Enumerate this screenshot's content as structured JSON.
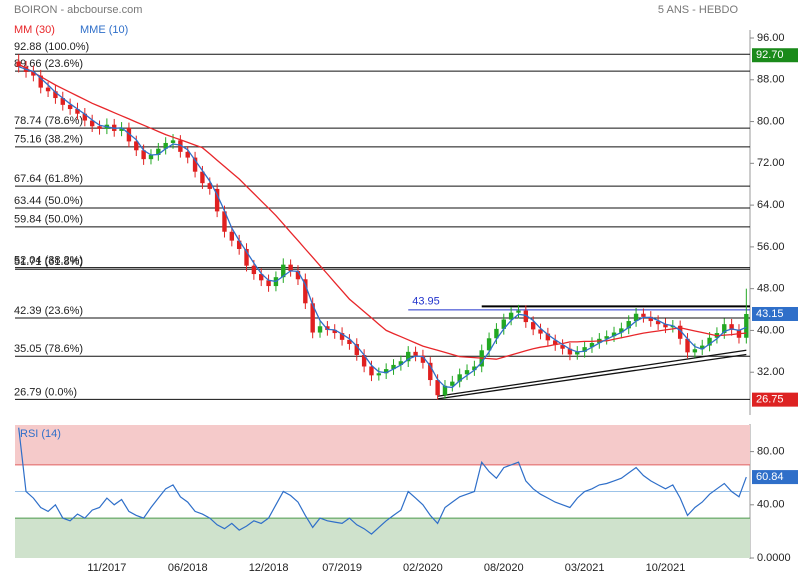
{
  "chart_data": [
    {
      "type": "candlestick",
      "title": "BOIRON - abcbourse.com",
      "subtitle": "5 ANS - HEBDO",
      "categories": [
        null,
        null,
        null,
        null,
        null,
        null,
        null,
        null,
        null,
        null,
        null,
        null,
        "11/2017",
        null,
        null,
        null,
        null,
        null,
        null,
        null,
        null,
        null,
        null,
        "06/2018",
        null,
        null,
        null,
        null,
        null,
        null,
        null,
        null,
        null,
        null,
        "12/2018",
        null,
        null,
        null,
        null,
        null,
        null,
        null,
        null,
        null,
        "07/2019",
        null,
        null,
        null,
        null,
        null,
        null,
        null,
        null,
        null,
        null,
        "02/2020",
        null,
        null,
        null,
        null,
        null,
        null,
        null,
        null,
        null,
        null,
        "08/2020",
        null,
        null,
        null,
        null,
        null,
        null,
        null,
        null,
        null,
        null,
        "03/2021",
        null,
        null,
        null,
        null,
        null,
        null,
        null,
        null,
        null,
        null,
        "10/2021",
        null,
        null,
        null,
        null,
        null,
        null,
        null,
        null,
        null,
        null,
        null
      ],
      "open": [
        91.5,
        90.5,
        89.5,
        88.8,
        86.5,
        85.8,
        84.5,
        83.2,
        82.4,
        81.5,
        80.2,
        79.1,
        78.6,
        79.4,
        78.2,
        78.8,
        76.2,
        74.5,
        72.8,
        73.6,
        74.8,
        75.9,
        76.4,
        74.2,
        73.1,
        70.4,
        68.2,
        67.1,
        62.8,
        58.9,
        57.2,
        55.6,
        52.4,
        50.8,
        49.6,
        48.5,
        50.2,
        52.6,
        51.4,
        49.8,
        45.2,
        39.6,
        40.8,
        40.1,
        39.5,
        38.2,
        37.4,
        35.3,
        33.1,
        31.4,
        31.8,
        32.6,
        33.4,
        34.1,
        35.9,
        35.2,
        33.8,
        30.5,
        27.6,
        29.4,
        30.2,
        31.6,
        32.4,
        33.1,
        36.2,
        38.5,
        40.3,
        42.1,
        43.4,
        43.8,
        41.6,
        40.2,
        39.4,
        38.1,
        37.2,
        36.5,
        35.4,
        35.9,
        36.8,
        37.6,
        38.4,
        38.9,
        39.6,
        40.4,
        41.8,
        43.2,
        42.6,
        41.8,
        41.2,
        40.6,
        40.9,
        38.4,
        35.8,
        36.4,
        37.1,
        38.6,
        39.5,
        41.2,
        40.1,
        38.6
      ],
      "high": [
        92.88,
        91.6,
        90.7,
        89.9,
        87.6,
        86.9,
        85.7,
        84.4,
        83.6,
        82.6,
        81.3,
        80.2,
        80.6,
        80.5,
        79.9,
        79.8,
        77.3,
        75.6,
        74.7,
        75.9,
        77.0,
        77.6,
        77.4,
        75.3,
        74.2,
        71.5,
        69.3,
        68.1,
        63.9,
        60.0,
        58.3,
        56.7,
        53.5,
        51.9,
        50.7,
        51.3,
        53.8,
        53.6,
        52.5,
        50.9,
        46.3,
        41.9,
        41.8,
        41.2,
        40.6,
        39.3,
        38.5,
        36.4,
        34.2,
        32.9,
        33.7,
        34.5,
        35.2,
        37.0,
        36.9,
        36.3,
        34.9,
        31.6,
        30.5,
        31.3,
        32.7,
        33.5,
        34.2,
        37.3,
        39.6,
        41.4,
        43.2,
        44.5,
        44.9,
        44.8,
        42.7,
        41.3,
        40.5,
        39.2,
        38.3,
        37.6,
        37.0,
        37.9,
        38.7,
        39.5,
        40.0,
        40.7,
        41.5,
        42.9,
        44.3,
        44.2,
        43.7,
        42.9,
        42.3,
        42.0,
        41.9,
        39.5,
        37.5,
        38.2,
        39.7,
        40.6,
        42.3,
        42.2,
        41.2,
        48.0
      ],
      "low": [
        89.4,
        88.4,
        87.7,
        85.4,
        84.7,
        83.4,
        82.1,
        81.3,
        80.4,
        79.1,
        78.0,
        77.5,
        77.6,
        77.1,
        77.2,
        75.1,
        73.4,
        71.7,
        71.8,
        72.5,
        73.7,
        74.8,
        73.1,
        72.0,
        69.3,
        67.1,
        66.0,
        61.7,
        57.8,
        56.1,
        54.5,
        51.3,
        49.7,
        48.5,
        47.4,
        47.5,
        49.1,
        50.3,
        48.7,
        44.1,
        38.5,
        38.6,
        39.0,
        38.4,
        37.1,
        36.3,
        34.2,
        32.0,
        30.3,
        30.4,
        30.7,
        31.5,
        32.3,
        33.0,
        34.1,
        32.7,
        29.4,
        26.79,
        26.9,
        28.3,
        29.1,
        30.5,
        31.3,
        32.0,
        35.1,
        37.4,
        39.2,
        41.0,
        42.3,
        40.5,
        39.1,
        38.3,
        37.0,
        36.1,
        35.4,
        34.3,
        34.4,
        34.8,
        35.7,
        36.5,
        37.3,
        37.8,
        38.5,
        39.3,
        40.7,
        41.5,
        40.7,
        40.1,
        39.5,
        39.6,
        37.3,
        34.7,
        34.8,
        35.3,
        36.0,
        37.5,
        38.4,
        39.0,
        37.5,
        37.5
      ],
      "close": [
        90.5,
        89.5,
        88.8,
        86.5,
        85.8,
        84.5,
        83.2,
        82.4,
        81.5,
        80.2,
        79.1,
        78.6,
        79.4,
        78.2,
        78.8,
        76.2,
        74.5,
        72.8,
        73.6,
        74.8,
        75.9,
        76.4,
        74.2,
        73.1,
        70.4,
        68.2,
        67.1,
        62.8,
        58.9,
        57.2,
        55.6,
        52.4,
        50.8,
        49.6,
        48.5,
        50.2,
        52.6,
        51.4,
        49.8,
        45.2,
        39.6,
        40.8,
        40.1,
        39.5,
        38.2,
        37.4,
        35.3,
        33.1,
        31.4,
        31.8,
        32.6,
        33.4,
        34.1,
        35.9,
        35.2,
        33.8,
        30.5,
        27.6,
        29.4,
        30.2,
        31.6,
        32.4,
        33.1,
        36.2,
        38.5,
        40.3,
        42.1,
        43.4,
        43.8,
        41.6,
        40.2,
        39.4,
        38.1,
        37.2,
        36.5,
        35.4,
        35.9,
        36.8,
        37.6,
        38.4,
        38.9,
        39.6,
        40.4,
        41.8,
        43.2,
        42.6,
        41.8,
        41.2,
        40.6,
        40.9,
        38.4,
        35.8,
        36.4,
        37.1,
        38.6,
        39.5,
        41.2,
        40.1,
        38.6,
        43.15
      ],
      "up_color": "#22a822",
      "down_color": "#e02020",
      "series": [
        {
          "name": "MM (30)",
          "color": "#e8262a",
          "values": [
            91,
            90.2,
            89.4,
            88.6,
            87.8,
            87,
            86.3,
            85.6,
            84.9,
            84.2,
            83.5,
            82.9,
            82.3,
            81.7,
            81.1,
            80.5,
            79.9,
            79.3,
            78.7,
            78.1,
            77.5,
            77,
            76.5,
            76,
            75.5,
            75,
            73.8,
            72.6,
            71.4,
            70.2,
            69,
            67.6,
            66.2,
            64.8,
            63.4,
            62,
            60.4,
            58.8,
            57.2,
            55.6,
            54,
            52.4,
            50.8,
            49.2,
            47.6,
            46,
            44.8,
            43.6,
            42.4,
            41.2,
            40,
            39.4,
            38.8,
            38.2,
            37.6,
            37,
            36.6,
            36.2,
            35.8,
            35.4,
            35,
            34.9,
            34.8,
            34.7,
            34.6,
            34.5,
            34.9,
            35.3,
            35.7,
            36.1,
            36.5,
            36.8,
            37,
            37.3,
            37.5,
            37.8,
            37.8,
            37.9,
            37.9,
            38,
            38,
            38.3,
            38.6,
            38.9,
            39.2,
            39.5,
            39.7,
            39.9,
            40.1,
            40.3,
            40.5,
            40.2,
            39.9,
            39.6,
            39.3,
            39,
            39.1,
            39.2,
            39.4,
            39.5
          ]
        },
        {
          "name": "MME (10)",
          "color": "#2f6fc9",
          "values": [
            90.5,
            90,
            89.6,
            88.3,
            87,
            85.6,
            84.5,
            83.4,
            82.4,
            81.4,
            80.3,
            79.3,
            79,
            78.7,
            78.8,
            77.7,
            76.5,
            74.5,
            73.6,
            73.7,
            74.8,
            75.7,
            75.5,
            74.6,
            72.6,
            70.6,
            68.6,
            66,
            62.9,
            59.6,
            57.2,
            55.1,
            52.9,
            50.9,
            49.6,
            49.4,
            50.4,
            51.4,
            51.3,
            48.8,
            44.9,
            41.9,
            40.2,
            40.1,
            39.3,
            38.4,
            37,
            35.3,
            33.3,
            32.1,
            31.9,
            32.6,
            33.4,
            34.5,
            35.1,
            35,
            33.2,
            30.6,
            29.2,
            29.1,
            30.4,
            31.4,
            32.4,
            33.9,
            35.9,
            38.3,
            40.3,
            41.9,
            43.1,
            42.9,
            41.9,
            40.4,
            39.2,
            38.2,
            37.3,
            36.4,
            35.9,
            36,
            36.8,
            37.6,
            38.3,
            39,
            39.6,
            40.6,
            41.8,
            42.5,
            42.5,
            41.9,
            41.2,
            40.9,
            40,
            38.4,
            36.9,
            36.4,
            37.4,
            38.4,
            39.8,
            40.3,
            40,
            40.6
          ]
        }
      ],
      "ylim": [
        24,
        96
      ],
      "yticks": [
        {
          "value": 96,
          "label": "96.00"
        },
        {
          "value": 88,
          "label": "88.00"
        },
        {
          "value": 80,
          "label": "80.00"
        },
        {
          "value": 72,
          "label": "72.00"
        },
        {
          "value": 64,
          "label": "64.00"
        },
        {
          "value": 56,
          "label": "56.00"
        },
        {
          "value": 48,
          "label": "48.00"
        },
        {
          "value": 40,
          "label": "40.00"
        },
        {
          "value": 32,
          "label": "32.00"
        }
      ],
      "fib_levels": [
        {
          "value": 92.88,
          "label": "92.88 (100.0%)"
        },
        {
          "value": 89.66,
          "label": "89.66 (23.6%)"
        },
        {
          "value": 78.74,
          "label": "78.74 (78.6%)"
        },
        {
          "value": 75.16,
          "label": "75.16 (38.2%)"
        },
        {
          "value": 67.64,
          "label": "67.64 (61.8%)"
        },
        {
          "value": 63.44,
          "label": "63.44 (50.0%)"
        },
        {
          "value": 59.84,
          "label": "59.84 (50.0%)"
        },
        {
          "value": 52.04,
          "label": "52.04 (38.2%)"
        },
        {
          "value": 51.71,
          "label": "51.71 (61.8%)"
        },
        {
          "value": 42.39,
          "label": "42.39 (23.6%)"
        },
        {
          "value": 35.05,
          "label": "35.05 (78.6%)"
        },
        {
          "value": 26.79,
          "label": "26.79 (0.0%)"
        }
      ],
      "hlines": [
        {
          "value": 43.95,
          "label": "43.95",
          "color": "#2233cc",
          "from": 53
        },
        {
          "value": 44.6,
          "color": "#000000",
          "from": 63
        }
      ],
      "trendlines": [
        {
          "x": [
            57,
            99
          ],
          "y": [
            26.9,
            35.4
          ]
        },
        {
          "x": [
            57,
            99
          ],
          "y": [
            27.4,
            36.2
          ]
        }
      ],
      "badges": [
        {
          "value": 92.7,
          "label": "92.70",
          "color": "#1a8a1a"
        },
        {
          "value": 43.15,
          "label": "43.15",
          "color": "#2f6fc9"
        },
        {
          "value": 26.75,
          "label": "26.75",
          "color": "#dd2222"
        }
      ]
    },
    {
      "type": "line",
      "series": [
        {
          "name": "RSI (14)",
          "color": "#2f6fc9",
          "values": [
            98,
            50,
            45,
            38,
            35,
            40,
            30,
            28,
            33,
            30,
            36,
            38,
            45,
            40,
            44,
            35,
            32,
            30,
            38,
            45,
            52,
            55,
            46,
            42,
            35,
            33,
            30,
            25,
            22,
            26,
            21,
            24,
            28,
            26,
            30,
            40,
            50,
            47,
            42,
            32,
            23,
            30,
            28,
            27,
            26,
            30,
            25,
            22,
            18,
            23,
            28,
            32,
            36,
            50,
            45,
            40,
            32,
            26,
            38,
            42,
            46,
            48,
            50,
            72,
            65,
            60,
            68,
            70,
            72,
            58,
            52,
            48,
            45,
            42,
            40,
            38,
            45,
            50,
            52,
            55,
            56,
            58,
            60,
            64,
            68,
            62,
            58,
            55,
            52,
            55,
            45,
            32,
            38,
            42,
            48,
            52,
            56,
            50,
            46,
            60.84
          ]
        }
      ],
      "ylim": [
        0,
        100
      ],
      "yticks": [
        {
          "value": 80,
          "label": "80.00"
        },
        {
          "value": 40,
          "label": "40.00"
        },
        {
          "value": 0,
          "label": "0.0000"
        }
      ],
      "zones": [
        {
          "from": 70,
          "to": 100,
          "color": "#f5caca",
          "line": "#e06060"
        },
        {
          "from": 0,
          "to": 30,
          "color": "#cfe2cc",
          "line": "#4c9a4c"
        }
      ],
      "hlines": [
        {
          "value": 50,
          "color": "#9cc3e8"
        }
      ],
      "badges": [
        {
          "value": 60.84,
          "label": "60.84",
          "color": "#2f6fc9"
        }
      ]
    }
  ]
}
